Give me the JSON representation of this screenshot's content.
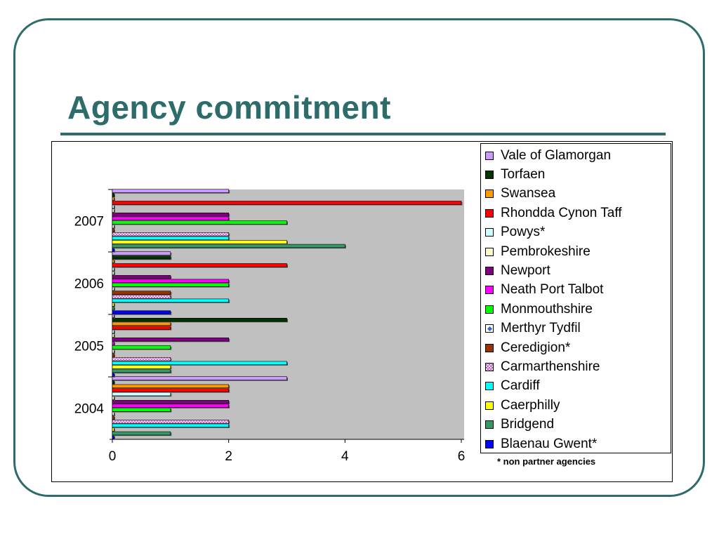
{
  "slide": {
    "title": "Agency commitment",
    "footnote": "* non partner agencies",
    "accent_color": "#2e6b6b"
  },
  "chart_data": {
    "type": "bar",
    "orientation": "horizontal",
    "categories": [
      "2004",
      "2005",
      "2006",
      "2007"
    ],
    "xlim": [
      0,
      6
    ],
    "xticks": [
      "0",
      "2",
      "4",
      "6"
    ],
    "grid": false,
    "plot_background": "#c0c0c0",
    "legend_position": "right",
    "series": [
      {
        "name": "Blaenau Gwent*",
        "color": "#0000ff",
        "pattern": "solid",
        "values": [
          0,
          0,
          1,
          0
        ]
      },
      {
        "name": "Bridgend",
        "color": "#339966",
        "pattern": "solid",
        "values": [
          1,
          1,
          0,
          4
        ]
      },
      {
        "name": "Caerphilly",
        "color": "#ffff00",
        "pattern": "solid",
        "values": [
          0,
          1,
          0,
          3
        ]
      },
      {
        "name": "Cardiff",
        "color": "#00ffff",
        "pattern": "solid",
        "values": [
          2,
          3,
          2,
          2
        ]
      },
      {
        "name": "Carmarthenshire",
        "color": "#cc99cc",
        "pattern": "crosshatch",
        "values": [
          2,
          1,
          1,
          2
        ]
      },
      {
        "name": "Ceredigion*",
        "color": "#993300",
        "pattern": "solid",
        "values": [
          0,
          0,
          1,
          0
        ]
      },
      {
        "name": "Merthyr Tydfil",
        "color": "#ffffff",
        "pattern": "diamond",
        "values": [
          0,
          0,
          0,
          0
        ]
      },
      {
        "name": "Monmouthshire",
        "color": "#00ff00",
        "pattern": "solid",
        "values": [
          1,
          1,
          2,
          3
        ]
      },
      {
        "name": "Neath Port Talbot",
        "color": "#ff00ff",
        "pattern": "solid",
        "values": [
          2,
          0,
          2,
          2
        ]
      },
      {
        "name": "Newport",
        "color": "#800080",
        "pattern": "solid",
        "values": [
          2,
          2,
          1,
          2
        ]
      },
      {
        "name": "Pembrokeshire",
        "color": "#ffffcc",
        "pattern": "solid",
        "values": [
          0,
          0,
          0,
          0
        ]
      },
      {
        "name": "Powys*",
        "color": "#ccffff",
        "pattern": "solid",
        "values": [
          1,
          0,
          0,
          0
        ]
      },
      {
        "name": "Rhondda Cynon Taff",
        "color": "#ff0000",
        "pattern": "solid",
        "values": [
          2,
          1,
          3,
          6
        ]
      },
      {
        "name": "Swansea",
        "color": "#ff9900",
        "pattern": "solid",
        "values": [
          2,
          1,
          0,
          0
        ]
      },
      {
        "name": "Torfaen",
        "color": "#003300",
        "pattern": "solid",
        "values": [
          0,
          3,
          1,
          0
        ]
      },
      {
        "name": "Vale of Glamorgan",
        "color": "#cc99ff",
        "pattern": "solid",
        "values": [
          3,
          0,
          1,
          2
        ]
      }
    ]
  }
}
